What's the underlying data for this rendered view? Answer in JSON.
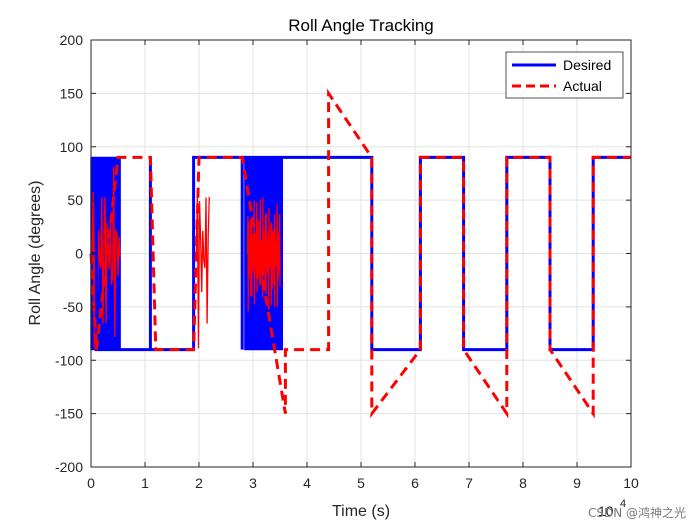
{
  "chart_data": {
    "type": "line",
    "title": "Roll Angle Tracking",
    "xlabel": "Time (s)",
    "ylabel": "Roll Angle (degrees)",
    "x_exponent_label": "10",
    "x_exponent_power": "4",
    "xlim": [
      0,
      10
    ],
    "ylim": [
      -200,
      200
    ],
    "xticks": [
      0,
      1,
      2,
      3,
      4,
      5,
      6,
      7,
      8,
      9,
      10
    ],
    "yticks": [
      -200,
      -150,
      -100,
      -50,
      0,
      50,
      100,
      150,
      200
    ],
    "grid": true,
    "legend_position": "top-right",
    "colors": {
      "desired": "#0000ff",
      "actual": "#ff0000",
      "grid": "#e3e3e3",
      "axis": "#262626"
    },
    "series": [
      {
        "name": "Desired",
        "style": "solid",
        "x": [
          0,
          0.1,
          0.1,
          0.1,
          1.1,
          1.1,
          1.1,
          1.9,
          1.9,
          1.9,
          2.8,
          2.8,
          2.8,
          3.5,
          3.5,
          5.2,
          5.2,
          6.1,
          6.1,
          6.9,
          6.9,
          7.7,
          7.7,
          8.5,
          8.5,
          9.3,
          9.3,
          10
        ],
        "y": [
          0,
          0,
          90,
          -90,
          -90,
          90,
          -90,
          -90,
          90,
          90,
          90,
          -90,
          90,
          90,
          90,
          90,
          -90,
          -90,
          90,
          90,
          -90,
          -90,
          90,
          90,
          -90,
          -90,
          90,
          90
        ]
      },
      {
        "name": "Actual",
        "style": "dashed",
        "x": [
          0,
          0.1,
          0.5,
          0.9,
          1.1,
          1.2,
          1.9,
          2.0,
          2.8,
          3.6,
          3.6,
          4.4,
          4.4,
          5.2,
          5.2,
          6.1,
          6.1,
          6.9,
          6.9,
          7.7,
          7.7,
          8.5,
          8.5,
          9.3,
          9.3,
          10
        ],
        "y": [
          0,
          -90,
          90,
          90,
          90,
          -90,
          -90,
          90,
          90,
          -150,
          -90,
          -90,
          150,
          90,
          -150,
          -90,
          90,
          90,
          -90,
          -150,
          90,
          90,
          -90,
          -150,
          90,
          90
        ]
      }
    ]
  },
  "watermark": "CSDN @鸿神之光"
}
